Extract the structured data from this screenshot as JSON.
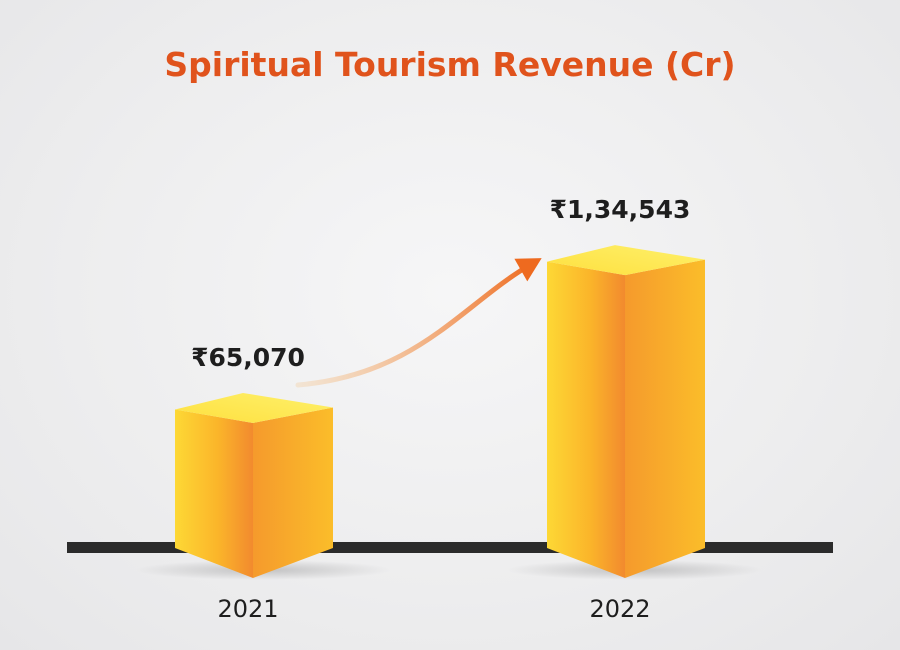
{
  "colors": {
    "title": "#e0531c",
    "text": "#1e1e1e",
    "baseline": "#2b2b2b",
    "bar_light": "#fdd835",
    "bar_mid": "#fbb928",
    "bar_dark": "#f28a2e",
    "arrow": "#ee6a1f"
  },
  "chart_data": {
    "type": "bar",
    "title": "Spiritual Tourism Revenue (Cr)",
    "categories": [
      "2021",
      "2022"
    ],
    "values": [
      65070,
      134543
    ],
    "data_labels": [
      "₹65,070",
      "₹1,34,543"
    ],
    "annotation": "arrow-up-right",
    "xlabel": "",
    "ylabel": "",
    "ylim": [
      0,
      140000
    ],
    "grid": false,
    "legend": "none"
  }
}
